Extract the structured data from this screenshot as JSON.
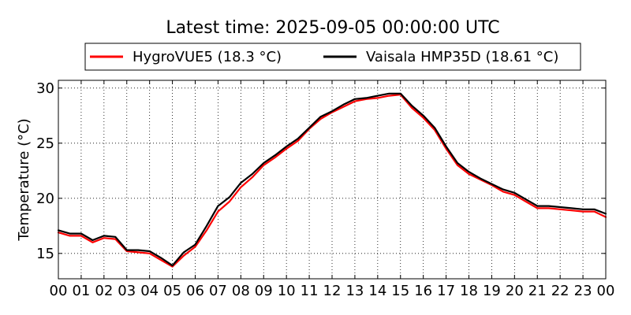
{
  "chart_data": {
    "type": "line",
    "title": "Latest time: 2025-09-05 00:00:00 UTC",
    "xlabel": "",
    "ylabel": "Temperature (°C)",
    "xlim": [
      0,
      24
    ],
    "ylim": [
      12.7,
      30.7
    ],
    "x_ticks": [
      0,
      1,
      2,
      3,
      4,
      5,
      6,
      7,
      8,
      9,
      10,
      11,
      12,
      13,
      14,
      15,
      16,
      17,
      18,
      19,
      20,
      21,
      22,
      23,
      24
    ],
    "x_tick_labels": [
      "00",
      "01",
      "02",
      "03",
      "04",
      "05",
      "06",
      "07",
      "08",
      "09",
      "10",
      "11",
      "12",
      "13",
      "14",
      "15",
      "16",
      "17",
      "18",
      "19",
      "20",
      "21",
      "22",
      "23",
      "00"
    ],
    "y_ticks": [
      15,
      20,
      25,
      30
    ],
    "y_tick_labels": [
      "15",
      "20",
      "25",
      "30"
    ],
    "grid": true,
    "legend_placement": "top-center, above plot",
    "x": [
      0,
      0.5,
      1,
      1.5,
      2,
      2.5,
      3,
      3.5,
      4,
      4.5,
      5,
      5.5,
      6,
      6.5,
      7,
      7.5,
      8,
      8.5,
      9,
      9.5,
      10,
      10.5,
      11,
      11.5,
      12,
      12.5,
      13,
      13.5,
      14,
      14.5,
      15,
      15.5,
      16,
      16.5,
      17,
      17.5,
      18,
      18.5,
      19,
      19.5,
      20,
      20.5,
      21,
      21.5,
      22,
      22.5,
      23,
      23.5,
      24
    ],
    "series": [
      {
        "name": "HygroVUE5 (18.3 °C)",
        "color": "#ff0000",
        "values": [
          16.9,
          16.6,
          16.6,
          16.0,
          16.4,
          16.3,
          15.2,
          15.1,
          15.0,
          14.4,
          13.8,
          14.8,
          15.6,
          17.1,
          18.8,
          19.7,
          21.0,
          21.9,
          23.0,
          23.7,
          24.5,
          25.2,
          26.3,
          27.2,
          27.8,
          28.3,
          28.8,
          29.0,
          29.1,
          29.3,
          29.4,
          28.2,
          27.3,
          26.2,
          24.5,
          23.0,
          22.2,
          21.7,
          21.2,
          20.6,
          20.3,
          19.7,
          19.1,
          19.1,
          19.0,
          18.9,
          18.8,
          18.8,
          18.3
        ]
      },
      {
        "name": "Vaisala HMP35D (18.61 °C)",
        "color": "#000000",
        "values": [
          17.1,
          16.8,
          16.8,
          16.2,
          16.6,
          16.5,
          15.3,
          15.3,
          15.2,
          14.6,
          13.9,
          15.1,
          15.8,
          17.5,
          19.3,
          20.1,
          21.4,
          22.2,
          23.2,
          23.9,
          24.7,
          25.4,
          26.4,
          27.4,
          27.9,
          28.5,
          29.0,
          29.1,
          29.3,
          29.5,
          29.5,
          28.4,
          27.5,
          26.4,
          24.7,
          23.2,
          22.4,
          21.8,
          21.3,
          20.8,
          20.5,
          19.9,
          19.3,
          19.3,
          19.2,
          19.1,
          19.0,
          19.0,
          18.6
        ]
      }
    ]
  }
}
